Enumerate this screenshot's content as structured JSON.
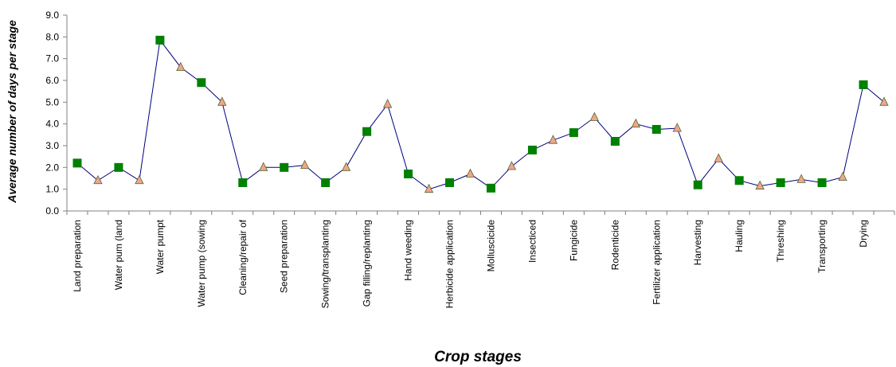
{
  "chart_data": {
    "type": "line",
    "title": "",
    "xlabel": "Crop stages",
    "ylabel": "Average number of days per stage",
    "ylim": [
      0,
      9
    ],
    "yticks": [
      "0.0",
      "1.0",
      "2.0",
      "3.0",
      "4.0",
      "5.0",
      "6.0",
      "7.0",
      "8.0",
      "9.0"
    ],
    "grid": false,
    "legend": "none",
    "categories": [
      "Land preparation",
      "Water pum (land",
      "Water pumpt",
      "Water pump (sowing",
      "Cleaning/repair of",
      "Seed preparation",
      "Sowing/transplanting",
      "Gap filling/replanting",
      "Hand weeding",
      "Herbicide application",
      "Molluscicide",
      "Insecticed",
      "Fungicide",
      "Rodenticide",
      "Fertilizer application",
      "Harvesting",
      "Hauling",
      "Threshing",
      "Transporting",
      "Drying"
    ],
    "series": [
      {
        "marker": "square",
        "values": [
          2.2,
          2.0,
          7.85,
          5.9,
          1.3,
          2.0,
          1.3,
          3.65,
          1.7,
          1.3,
          1.05,
          2.8,
          3.6,
          3.2,
          3.75,
          1.2,
          1.4,
          1.3,
          1.3,
          5.8
        ]
      },
      {
        "marker": "triangle",
        "values": [
          1.4,
          1.4,
          6.6,
          5.0,
          2.0,
          2.1,
          2.0,
          4.9,
          1.0,
          1.7,
          2.05,
          3.25,
          4.3,
          4.0,
          3.8,
          2.4,
          1.15,
          1.45,
          1.55,
          5.0
        ]
      }
    ],
    "colors": {
      "line": "#000080",
      "square_marker": "#008000",
      "triangle_marker": "#F4A48A",
      "axis": "#808080"
    }
  }
}
